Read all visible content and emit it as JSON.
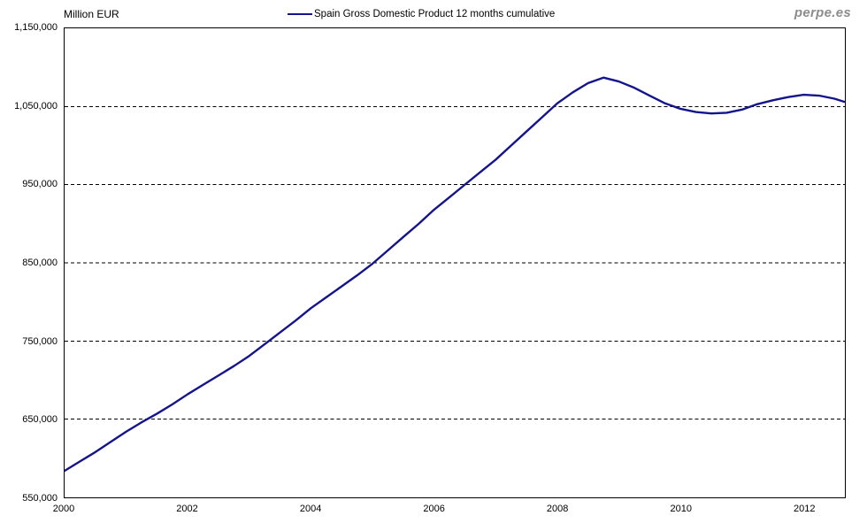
{
  "header": {
    "unit_label": "Million EUR",
    "watermark": "perpe.es"
  },
  "legend": {
    "label": "Spain Gross Domestic Product 12 months cumulative"
  },
  "colors": {
    "line": "#14148C",
    "grid": "#000000",
    "border": "#000000",
    "text": "#000000",
    "watermark": "#8c8c8c",
    "background": "#ffffff"
  },
  "chart_data": {
    "type": "line",
    "title": "Spain Gross Domestic Product 12 months cumulative",
    "unit": "Million EUR",
    "xlabel": "",
    "ylabel": "Million EUR",
    "xlim": [
      2000,
      2012.67
    ],
    "ylim": [
      550000,
      1150000
    ],
    "yticks": [
      550000,
      650000,
      750000,
      850000,
      950000,
      1050000,
      1150000
    ],
    "xticks": [
      2000,
      2002,
      2004,
      2006,
      2008,
      2010,
      2012
    ],
    "grid": "horizontal-dashed",
    "legend_position": "top-center",
    "series": [
      {
        "name": "Spain Gross Domestic Product 12 months cumulative",
        "color": "#14148C",
        "x": [
          2000.0,
          2000.25,
          2000.5,
          2000.75,
          2001.0,
          2001.25,
          2001.5,
          2001.75,
          2002.0,
          2002.25,
          2002.5,
          2002.75,
          2003.0,
          2003.25,
          2003.5,
          2003.75,
          2004.0,
          2004.25,
          2004.5,
          2004.75,
          2005.0,
          2005.25,
          2005.5,
          2005.75,
          2006.0,
          2006.25,
          2006.5,
          2006.75,
          2007.0,
          2007.25,
          2007.5,
          2007.75,
          2008.0,
          2008.25,
          2008.5,
          2008.75,
          2009.0,
          2009.25,
          2009.5,
          2009.75,
          2010.0,
          2010.25,
          2010.5,
          2010.75,
          2011.0,
          2011.25,
          2011.5,
          2011.75,
          2012.0,
          2012.25,
          2012.5,
          2012.66
        ],
        "values": [
          584000,
          596000,
          608000,
          621000,
          634000,
          646000,
          657000,
          669000,
          682000,
          694000,
          706000,
          718000,
          731000,
          746000,
          761000,
          776000,
          792000,
          806000,
          820000,
          834000,
          849000,
          866000,
          883000,
          900000,
          918000,
          934000,
          950000,
          966000,
          982000,
          1000000,
          1018000,
          1036000,
          1054000,
          1068000,
          1080000,
          1087000,
          1082000,
          1074000,
          1064000,
          1054000,
          1047000,
          1043000,
          1041000,
          1042000,
          1046000,
          1053000,
          1058000,
          1062000,
          1065000,
          1064000,
          1060000,
          1056000
        ]
      }
    ]
  }
}
